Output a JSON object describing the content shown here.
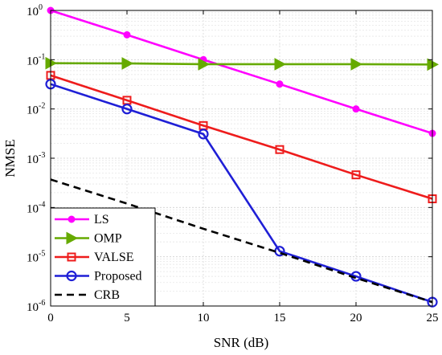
{
  "chart_data": {
    "type": "line",
    "xlabel": "SNR (dB)",
    "ylabel": "NMSE",
    "x": [
      0,
      5,
      10,
      15,
      20,
      25
    ],
    "xlim": [
      0,
      25
    ],
    "ylim": [
      1e-06,
      1
    ],
    "yscale": "log",
    "grid": true,
    "legend_position": "bottom-left",
    "xticks": [
      "0",
      "5",
      "10",
      "15",
      "20",
      "25"
    ],
    "yticks": [
      {
        "base": "10",
        "exp": "-6"
      },
      {
        "base": "10",
        "exp": "-5"
      },
      {
        "base": "10",
        "exp": "-4"
      },
      {
        "base": "10",
        "exp": "-3"
      },
      {
        "base": "10",
        "exp": "-2"
      },
      {
        "base": "10",
        "exp": "-1"
      },
      {
        "base": "10",
        "exp": "0"
      }
    ],
    "series": [
      {
        "name": "LS",
        "color": "#ff00ff",
        "marker": "circle-filled",
        "dash": "solid",
        "values": [
          1.0,
          0.32,
          0.1,
          0.032,
          0.01,
          0.0032
        ]
      },
      {
        "name": "OMP",
        "color": "#66aa00",
        "marker": "triangle-right-filled",
        "dash": "solid",
        "values": [
          0.085,
          0.084,
          0.081,
          0.081,
          0.081,
          0.08
        ]
      },
      {
        "name": "VALSE",
        "color": "#ee1c1c",
        "marker": "square-open",
        "dash": "solid",
        "values": [
          0.048,
          0.015,
          0.0046,
          0.0015,
          0.00046,
          0.00015
        ]
      },
      {
        "name": "Proposed",
        "color": "#1f1fd6",
        "marker": "circle-open",
        "dash": "solid",
        "values": [
          0.032,
          0.01,
          0.0031,
          1.3e-05,
          4e-06,
          1.2e-06
        ]
      },
      {
        "name": "CRB",
        "color": "#000000",
        "marker": "none",
        "dash": "dashed",
        "values": [
          0.00037,
          0.00012,
          3.7e-05,
          1.2e-05,
          3.7e-06,
          1.2e-06
        ]
      }
    ]
  }
}
